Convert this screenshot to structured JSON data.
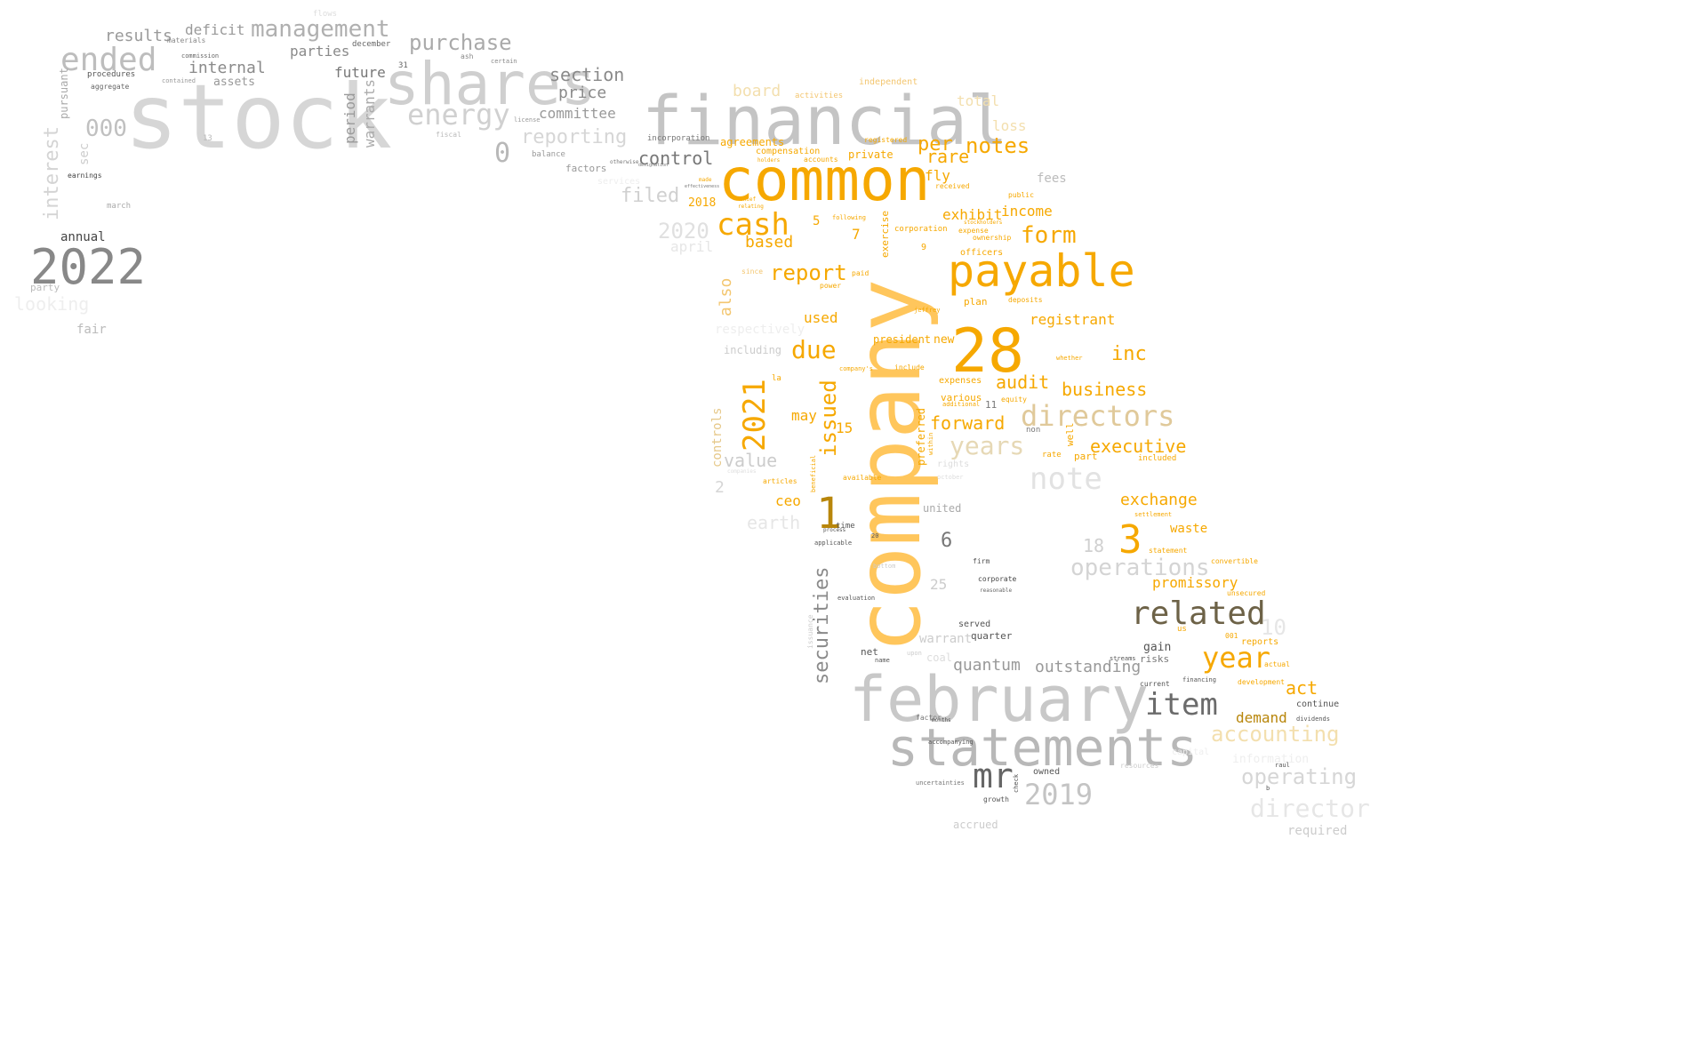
{
  "words": [
    {
      "text": "stock",
      "color": "#d6d6d6"
    },
    {
      "text": "shares",
      "color": "#cfcfcf"
    },
    {
      "text": "financial",
      "color": "#c4c4c4"
    },
    {
      "text": "common",
      "color": "#f6a800"
    },
    {
      "text": "company",
      "color": "#ffc65c"
    },
    {
      "text": "payable",
      "color": "#f6a800"
    },
    {
      "text": "28",
      "color": "#f6a800"
    },
    {
      "text": "february",
      "color": "#c8c8c8"
    },
    {
      "text": "statements",
      "color": "#b8b8b8"
    },
    {
      "text": "2022",
      "color": "#888888"
    },
    {
      "text": "ended",
      "color": "#bdbdbd"
    },
    {
      "text": "management",
      "color": "#b0b0b0"
    },
    {
      "text": "purchase",
      "color": "#aaaaaa"
    },
    {
      "text": "energy",
      "color": "#d0d0d0"
    },
    {
      "text": "related",
      "color": "#6d6247"
    },
    {
      "text": "item",
      "color": "#6b6b6b"
    },
    {
      "text": "mr",
      "color": "#666666"
    },
    {
      "text": "cash",
      "color": "#f6a800"
    },
    {
      "text": "year",
      "color": "#f6a800"
    },
    {
      "text": "directors",
      "color": "#e0c99a"
    },
    {
      "text": "note",
      "color": "#e2e2e2"
    },
    {
      "text": "1",
      "color": "#b8860b"
    },
    {
      "text": "3",
      "color": "#f6a800"
    },
    {
      "text": "2021",
      "color": "#f6a800"
    },
    {
      "text": "issued",
      "color": "#f6a800"
    },
    {
      "text": "securities",
      "color": "#8a8a8a"
    },
    {
      "text": "due",
      "color": "#f6a800"
    },
    {
      "text": "report",
      "color": "#f6a800"
    },
    {
      "text": "form",
      "color": "#f6a800"
    },
    {
      "text": "notes",
      "color": "#f6a800"
    },
    {
      "text": "per",
      "color": "#f6a800"
    },
    {
      "text": "rare",
      "color": "#f6a800"
    },
    {
      "text": "inc",
      "color": "#f6a800"
    },
    {
      "text": "business",
      "color": "#f6a800"
    },
    {
      "text": "audit",
      "color": "#f6a800"
    },
    {
      "text": "forward",
      "color": "#f6a800"
    },
    {
      "text": "executive",
      "color": "#f6a800"
    },
    {
      "text": "years",
      "color": "#e6d8b5"
    },
    {
      "text": "operations",
      "color": "#d4d4d4"
    },
    {
      "text": "2019",
      "color": "#c4c4c4"
    },
    {
      "text": "operating",
      "color": "#d6d6d6"
    },
    {
      "text": "director",
      "color": "#e6e6e6"
    },
    {
      "text": "accounting",
      "color": "#f3dfae"
    },
    {
      "text": "interest",
      "color": "#d4d4d4"
    },
    {
      "text": "000",
      "color": "#c0c0c0"
    },
    {
      "text": "0",
      "color": "#b8b8b8"
    },
    {
      "text": "reporting",
      "color": "#d6d6d6"
    },
    {
      "text": "section",
      "color": "#8a8a8a"
    },
    {
      "text": "price",
      "color": "#8a8a8a"
    },
    {
      "text": "committee",
      "color": "#999999"
    },
    {
      "text": "internal",
      "color": "#8a8a8a"
    },
    {
      "text": "results",
      "color": "#9a9a9a"
    },
    {
      "text": "deficit",
      "color": "#9a9a9a"
    },
    {
      "text": "parties",
      "color": "#8a8a8a"
    },
    {
      "text": "future",
      "color": "#777777"
    },
    {
      "text": "period",
      "color": "#9a9a9a"
    },
    {
      "text": "warrants",
      "color": "#aaaaaa"
    },
    {
      "text": "control",
      "color": "#777777"
    },
    {
      "text": "filed",
      "color": "#d0d0d0"
    },
    {
      "text": "2020",
      "color": "#e0e0e0"
    },
    {
      "text": "april",
      "color": "#e6e6e6"
    },
    {
      "text": "board",
      "color": "#f3dfae"
    },
    {
      "text": "based",
      "color": "#f6a800"
    },
    {
      "text": "also",
      "color": "#f3c670"
    },
    {
      "text": "exhibit",
      "color": "#f6a800"
    },
    {
      "text": "income",
      "color": "#f6a800"
    },
    {
      "text": "fly",
      "color": "#f6a800"
    },
    {
      "text": "registrant",
      "color": "#f6a800"
    },
    {
      "text": "total",
      "color": "#f3dfae"
    },
    {
      "text": "loss",
      "color": "#f3dfae"
    },
    {
      "text": "fees",
      "color": "#bbbbbb"
    },
    {
      "text": "exchange",
      "color": "#f6a800"
    },
    {
      "text": "promissory",
      "color": "#f6a800"
    },
    {
      "text": "waste",
      "color": "#f6a800"
    },
    {
      "text": "quantum",
      "color": "#999999"
    },
    {
      "text": "outstanding",
      "color": "#999999"
    },
    {
      "text": "act",
      "color": "#f6a800"
    },
    {
      "text": "demand",
      "color": "#b8860b"
    },
    {
      "text": "value",
      "color": "#cccccc"
    },
    {
      "text": "earth",
      "color": "#e6e6e6"
    },
    {
      "text": "controls",
      "color": "#e6c889"
    },
    {
      "text": "used",
      "color": "#f6a800"
    },
    {
      "text": "may",
      "color": "#f6a800"
    },
    {
      "text": "15",
      "color": "#f6a800"
    },
    {
      "text": "ceo",
      "color": "#f6a800"
    },
    {
      "text": "6",
      "color": "#777777"
    },
    {
      "text": "18",
      "color": "#d0d0d0"
    },
    {
      "text": "10",
      "color": "#e6e6e6"
    },
    {
      "text": "25",
      "color": "#cccccc"
    },
    {
      "text": "2",
      "color": "#d6d6d6"
    },
    {
      "text": "5",
      "color": "#f6a800"
    },
    {
      "text": "7",
      "color": "#f6a800"
    },
    {
      "text": "warrant",
      "color": "#cccccc"
    },
    {
      "text": "coal",
      "color": "#dddddd"
    },
    {
      "text": "united",
      "color": "#aaaaaa"
    },
    {
      "text": "annual",
      "color": "#444444"
    },
    {
      "text": "fair",
      "color": "#bbbbbb"
    },
    {
      "text": "looking",
      "color": "#eeeeee"
    },
    {
      "text": "party",
      "color": "#bbbbbb"
    },
    {
      "text": "pursuant",
      "color": "#aaaaaa"
    },
    {
      "text": "sec",
      "color": "#cccccc"
    },
    {
      "text": "assets",
      "color": "#999999"
    },
    {
      "text": "2018",
      "color": "#f6a800"
    },
    {
      "text": "respectively",
      "color": "#eeeeee"
    },
    {
      "text": "including",
      "color": "#cccccc"
    },
    {
      "text": "agreements",
      "color": "#f6a800"
    },
    {
      "text": "compensation",
      "color": "#f6a800"
    },
    {
      "text": "private",
      "color": "#f6a800"
    },
    {
      "text": "expenses",
      "color": "#f6a800"
    },
    {
      "text": "various",
      "color": "#f6a800"
    },
    {
      "text": "president",
      "color": "#f6a800"
    },
    {
      "text": "new",
      "color": "#f6a800"
    },
    {
      "text": "plan",
      "color": "#f6a800"
    },
    {
      "text": "officers",
      "color": "#f6a800"
    },
    {
      "text": "preferred",
      "color": "#f6a800"
    },
    {
      "text": "exercise",
      "color": "#f6a800"
    },
    {
      "text": "rights",
      "color": "#dddddd"
    },
    {
      "text": "part",
      "color": "#f6a800"
    },
    {
      "text": "well",
      "color": "#f6a800"
    },
    {
      "text": "served",
      "color": "#555555"
    },
    {
      "text": "quarter",
      "color": "#555555"
    },
    {
      "text": "net",
      "color": "#555555"
    },
    {
      "text": "gain",
      "color": "#555555"
    },
    {
      "text": "risks",
      "color": "#777777"
    },
    {
      "text": "owned",
      "color": "#555555"
    },
    {
      "text": "accrued",
      "color": "#cccccc"
    },
    {
      "text": "information",
      "color": "#eeeeee"
    },
    {
      "text": "required",
      "color": "#cccccc"
    },
    {
      "text": "reports",
      "color": "#f6a800"
    },
    {
      "text": "continue",
      "color": "#555555"
    },
    {
      "text": "independent",
      "color": "#f3c670"
    },
    {
      "text": "activities",
      "color": "#f3c670"
    },
    {
      "text": "incorporation",
      "color": "#777777"
    },
    {
      "text": "factors",
      "color": "#999999"
    },
    {
      "text": "balance",
      "color": "#999999"
    },
    {
      "text": "december",
      "color": "#666666"
    },
    {
      "text": "march",
      "color": "#aaaaaa"
    },
    {
      "text": "earnings",
      "color": "#444444"
    },
    {
      "text": "procedures",
      "color": "#555555"
    },
    {
      "text": "aggregate",
      "color": "#666666"
    },
    {
      "text": "materials",
      "color": "#888888"
    },
    {
      "text": "commission",
      "color": "#666666"
    },
    {
      "text": "contained",
      "color": "#999999"
    },
    {
      "text": "license",
      "color": "#999999"
    },
    {
      "text": "fiscal",
      "color": "#bbbbbb"
    },
    {
      "text": "ash",
      "color": "#888888"
    },
    {
      "text": "certain",
      "color": "#888888"
    },
    {
      "text": "31",
      "color": "#666666"
    },
    {
      "text": "13",
      "color": "#bbbbbb"
    },
    {
      "text": "flows",
      "color": "#dddddd"
    },
    {
      "text": "services",
      "color": "#eeeeee"
    },
    {
      "text": "registered",
      "color": "#f6a800"
    },
    {
      "text": "accounts",
      "color": "#f6a800"
    },
    {
      "text": "received",
      "color": "#f6a800"
    },
    {
      "text": "expense",
      "color": "#f6a800"
    },
    {
      "text": "ownership",
      "color": "#f6a800"
    },
    {
      "text": "deposits",
      "color": "#f6a800"
    },
    {
      "text": "public",
      "color": "#f6a800"
    },
    {
      "text": "corporation",
      "color": "#f6a800"
    },
    {
      "text": "following",
      "color": "#f6a800"
    },
    {
      "text": "since",
      "color": "#f3c670"
    },
    {
      "text": "paid",
      "color": "#f6a800"
    },
    {
      "text": "power",
      "color": "#f6a800"
    },
    {
      "text": "include",
      "color": "#f6a800"
    },
    {
      "text": "equity",
      "color": "#f6a800"
    },
    {
      "text": "additional",
      "color": "#f6a800"
    },
    {
      "text": "non",
      "color": "#777777"
    },
    {
      "text": "rate",
      "color": "#f6a800"
    },
    {
      "text": "included",
      "color": "#f6a800"
    },
    {
      "text": "articles",
      "color": "#f6a800"
    },
    {
      "text": "available",
      "color": "#f6a800"
    },
    {
      "text": "statement",
      "color": "#f6a800"
    },
    {
      "text": "convertible",
      "color": "#f6a800"
    },
    {
      "text": "settlement",
      "color": "#f6a800"
    },
    {
      "text": "unsecured",
      "color": "#f6a800"
    },
    {
      "text": "development",
      "color": "#f6a800"
    },
    {
      "text": "actual",
      "color": "#f6a800"
    },
    {
      "text": "dividends",
      "color": "#555555"
    },
    {
      "text": "raul",
      "color": "#555555"
    },
    {
      "text": "us",
      "color": "#f6a800"
    },
    {
      "text": "001",
      "color": "#f6a800"
    },
    {
      "text": "financing",
      "color": "#555555"
    },
    {
      "text": "current",
      "color": "#555555"
    },
    {
      "text": "streams",
      "color": "#555555"
    },
    {
      "text": "firm",
      "color": "#555555"
    },
    {
      "text": "corporate",
      "color": "#444444"
    },
    {
      "text": "reasonable",
      "color": "#666666"
    },
    {
      "text": "evaluation",
      "color": "#555555"
    },
    {
      "text": "name",
      "color": "#555555"
    },
    {
      "text": "upon",
      "color": "#cccccc"
    },
    {
      "text": "time",
      "color": "#555555"
    },
    {
      "text": "process",
      "color": "#555555"
    },
    {
      "text": "applicable",
      "color": "#555555"
    },
    {
      "text": "20",
      "color": "#555555"
    },
    {
      "text": "bottom",
      "color": "#cccccc"
    },
    {
      "text": "factor",
      "color": "#777777"
    },
    {
      "text": "months",
      "color": "#555555"
    },
    {
      "text": "accompanying",
      "color": "#555555"
    },
    {
      "text": "uncertainties",
      "color": "#777777"
    },
    {
      "text": "growth",
      "color": "#555555"
    },
    {
      "text": "check",
      "color": "#555555"
    },
    {
      "text": "resources",
      "color": "#cccccc"
    },
    {
      "text": "capital",
      "color": "#eeeeee"
    },
    {
      "text": "jeffrey",
      "color": "#f6a800"
    },
    {
      "text": "issuance",
      "color": "#cccccc"
    },
    {
      "text": "within",
      "color": "#f6a800"
    },
    {
      "text": "beneficial",
      "color": "#f6a800"
    },
    {
      "text": "companies",
      "color": "#dddddd"
    },
    {
      "text": "october",
      "color": "#dddddd"
    },
    {
      "text": "11",
      "color": "#777777"
    },
    {
      "text": "9",
      "color": "#f6a800"
    },
    {
      "text": "la",
      "color": "#f6a800"
    },
    {
      "text": "b",
      "color": "#555555"
    },
    {
      "text": "company's",
      "color": "#f6a800"
    },
    {
      "text": "stockholders",
      "color": "#f6a800"
    },
    {
      "text": "made",
      "color": "#f6a800"
    },
    {
      "text": "effectiveness",
      "color": "#777777"
    },
    {
      "text": "designation",
      "color": "#777777"
    },
    {
      "text": "otherwise",
      "color": "#777777"
    },
    {
      "text": "holders",
      "color": "#f6a800"
    },
    {
      "text": "chief",
      "color": "#f6a800"
    },
    {
      "text": "relating",
      "color": "#f6a800"
    },
    {
      "text": "whether",
      "color": "#f6a800"
    }
  ]
}
